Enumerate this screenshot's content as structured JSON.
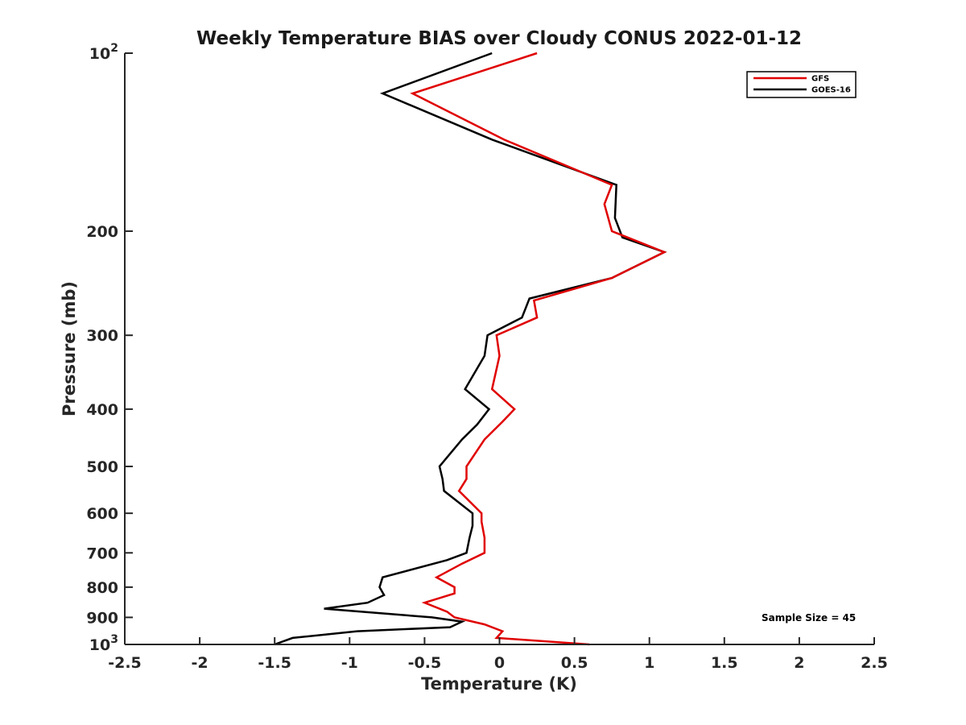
{
  "chart_data": {
    "type": "line",
    "title": "Weekly Temperature BIAS over Cloudy CONUS 2022-01-12",
    "xlabel": "Temperature (K)",
    "ylabel": "Pressure (mb)",
    "xlim": [
      -2.5,
      2.5
    ],
    "ylim": [
      1000,
      100
    ],
    "yscale": "log",
    "y_reversed": true,
    "grid": false,
    "legend_position": "top-right",
    "x_ticks": [
      "-2.5",
      "-2",
      "-1.5",
      "-1",
      "-0.5",
      "0",
      "0.5",
      "1",
      "1.5",
      "2",
      "2.5"
    ],
    "y_tick_values": [
      100,
      200,
      300,
      400,
      500,
      600,
      700,
      800,
      900,
      1000
    ],
    "y_ticks": [
      {
        "label": "10",
        "sup": "2"
      },
      {
        "label": "200"
      },
      {
        "label": "300"
      },
      {
        "label": "400"
      },
      {
        "label": "500"
      },
      {
        "label": "600"
      },
      {
        "label": "700"
      },
      {
        "label": "800"
      },
      {
        "label": "900"
      },
      {
        "label": "10",
        "sup": "3"
      }
    ],
    "annotation": "Sample Size = 45",
    "series": [
      {
        "name": "GFS",
        "color": "#e00000",
        "points": [
          [
            0.25,
            100
          ],
          [
            -0.58,
            117
          ],
          [
            0.03,
            140
          ],
          [
            0.75,
            167
          ],
          [
            0.7,
            180
          ],
          [
            0.75,
            200
          ],
          [
            1.1,
            217
          ],
          [
            0.75,
            240
          ],
          [
            0.23,
            262
          ],
          [
            0.25,
            280
          ],
          [
            -0.02,
            300
          ],
          [
            0.0,
            325
          ],
          [
            -0.05,
            370
          ],
          [
            0.1,
            400
          ],
          [
            0.02,
            420
          ],
          [
            -0.1,
            450
          ],
          [
            -0.22,
            500
          ],
          [
            -0.22,
            525
          ],
          [
            -0.27,
            550
          ],
          [
            -0.12,
            600
          ],
          [
            -0.12,
            620
          ],
          [
            -0.1,
            660
          ],
          [
            -0.1,
            700
          ],
          [
            -0.25,
            730
          ],
          [
            -0.42,
            770
          ],
          [
            -0.3,
            800
          ],
          [
            -0.3,
            820
          ],
          [
            -0.5,
            850
          ],
          [
            -0.35,
            880
          ],
          [
            -0.3,
            900
          ],
          [
            -0.1,
            925
          ],
          [
            0.02,
            950
          ],
          [
            -0.02,
            975
          ],
          [
            0.6,
            1000
          ]
        ]
      },
      {
        "name": "GOES-16",
        "color": "#000000",
        "points": [
          [
            -0.05,
            100
          ],
          [
            -0.78,
            117
          ],
          [
            -0.05,
            140
          ],
          [
            0.78,
            167
          ],
          [
            0.77,
            190
          ],
          [
            0.82,
            205
          ],
          [
            1.1,
            217
          ],
          [
            0.75,
            240
          ],
          [
            0.2,
            260
          ],
          [
            0.15,
            280
          ],
          [
            -0.08,
            300
          ],
          [
            -0.1,
            325
          ],
          [
            -0.23,
            370
          ],
          [
            -0.07,
            400
          ],
          [
            -0.15,
            425
          ],
          [
            -0.25,
            450
          ],
          [
            -0.4,
            500
          ],
          [
            -0.38,
            525
          ],
          [
            -0.37,
            550
          ],
          [
            -0.18,
            600
          ],
          [
            -0.18,
            630
          ],
          [
            -0.2,
            660
          ],
          [
            -0.22,
            700
          ],
          [
            -0.35,
            720
          ],
          [
            -0.78,
            770
          ],
          [
            -0.8,
            800
          ],
          [
            -0.77,
            825
          ],
          [
            -0.88,
            850
          ],
          [
            -1.17,
            870
          ],
          [
            -0.45,
            900
          ],
          [
            -0.25,
            915
          ],
          [
            -0.33,
            935
          ],
          [
            -0.95,
            950
          ],
          [
            -1.38,
            975
          ],
          [
            -1.5,
            1000
          ]
        ]
      }
    ]
  }
}
